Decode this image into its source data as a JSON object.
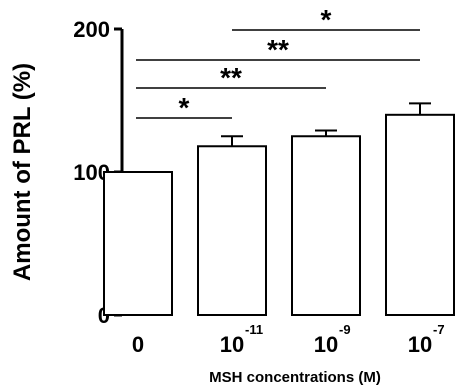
{
  "chart_data": {
    "type": "bar",
    "categories": [
      {
        "base": "0",
        "exp": ""
      },
      {
        "base": "10",
        "exp": "-11"
      },
      {
        "base": "10",
        "exp": "-9"
      },
      {
        "base": "10",
        "exp": "-7"
      }
    ],
    "values": [
      100,
      118,
      125,
      140
    ],
    "errors": [
      0,
      7,
      4,
      8
    ],
    "ylabel": "Amount of PRL (%)",
    "xlabel": "MSH concentrations (M)",
    "ylim": [
      0,
      200
    ],
    "yticks": [
      "0",
      "100",
      "200"
    ],
    "significance": [
      {
        "from": 0,
        "to": 1,
        "label": "*"
      },
      {
        "from": 0,
        "to": 2,
        "label": "**"
      },
      {
        "from": 0,
        "to": 3,
        "label": "**"
      },
      {
        "from": 1,
        "to": 3,
        "label": "*"
      }
    ],
    "colors": {
      "bar_fill": "#ffffff",
      "bar_stroke": "#000000"
    }
  }
}
